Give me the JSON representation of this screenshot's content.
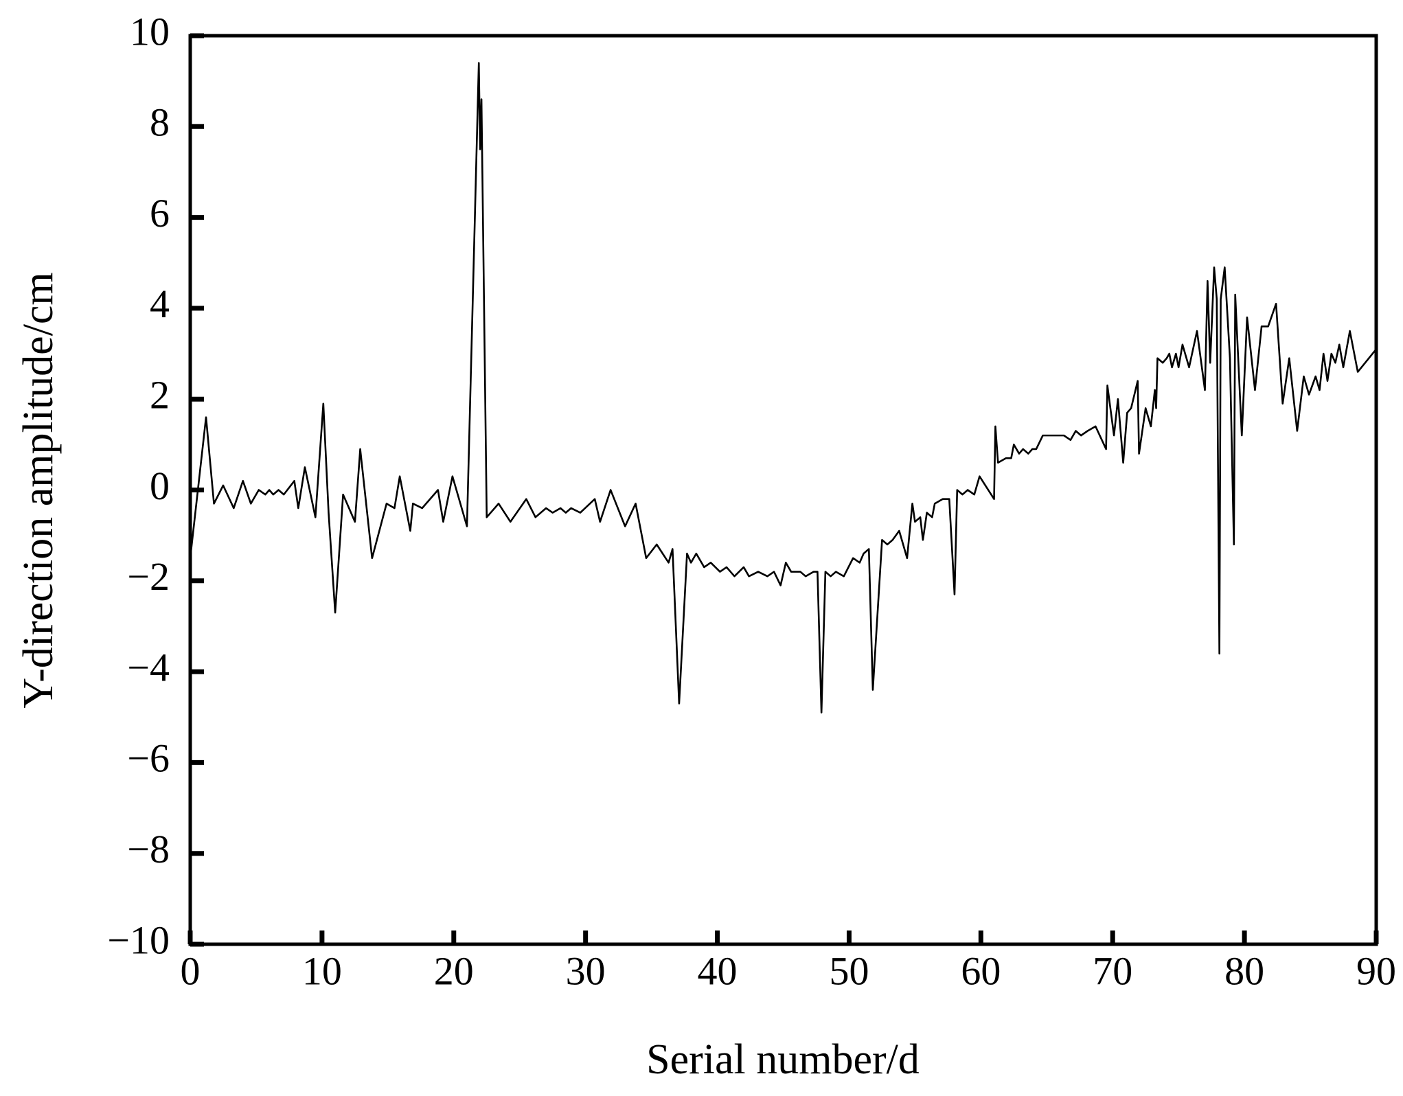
{
  "chart_data": {
    "type": "line",
    "xlabel": "Serial number/d",
    "ylabel": "Y-direction amplitude/cm",
    "color": "#000000",
    "xlim": [
      0,
      90
    ],
    "ylim": [
      -10,
      10
    ],
    "xticks": [
      0,
      10,
      20,
      30,
      40,
      50,
      60,
      70,
      80,
      90
    ],
    "yticks": [
      {
        "value": -10,
        "label": "−10"
      },
      {
        "value": -8,
        "label": "−8"
      },
      {
        "value": -6,
        "label": "−6"
      },
      {
        "value": -4,
        "label": "−4"
      },
      {
        "value": -2,
        "label": "−2"
      },
      0,
      2,
      4,
      6,
      8,
      10
    ],
    "grid": false,
    "x": [
      0,
      1.2,
      1.8,
      2.5,
      3.3,
      4,
      4.6,
      5.2,
      5.7,
      6,
      6.3,
      6.7,
      7.1,
      7.9,
      8.2,
      8.7,
      9.5,
      10.1,
      10.5,
      11,
      11.6,
      12.5,
      12.9,
      13.8,
      14.9,
      15.5,
      15.9,
      16.7,
      16.9,
      17.6,
      18.8,
      19.2,
      19.9,
      21,
      21.9,
      22,
      22.1,
      22.5,
      23.4,
      24.3,
      25.5,
      26.2,
      27,
      27.5,
      28.1,
      28.5,
      28.9,
      29.6,
      30.7,
      31.1,
      31.9,
      33,
      33.8,
      34.6,
      35.4,
      36.3,
      36.6,
      37.1,
      37.7,
      38,
      38.4,
      39,
      39.5,
      40.2,
      40.7,
      41.3,
      42,
      42.4,
      43.1,
      43.8,
      44.3,
      44.8,
      45.2,
      45.6,
      46.3,
      46.7,
      47.3,
      47.6,
      47.9,
      48.2,
      48.6,
      49,
      49.6,
      50.3,
      50.8,
      51.1,
      51.5,
      51.8,
      52.5,
      52.9,
      53.3,
      53.8,
      54.4,
      54.8,
      55,
      55.4,
      55.6,
      55.9,
      56.3,
      56.5,
      57.1,
      57.6,
      58,
      58.2,
      58.6,
      59,
      59.5,
      59.9,
      61,
      61.1,
      61.3,
      61.9,
      62.3,
      62.5,
      62.9,
      63.2,
      63.6,
      63.9,
      64.2,
      64.7,
      65.3,
      65.8,
      66.3,
      66.8,
      67.2,
      67.6,
      68.1,
      68.7,
      69.5,
      69.6,
      70.1,
      70.4,
      70.8,
      71.1,
      71.4,
      71.9,
      72,
      72.5,
      72.9,
      73.2,
      73.3,
      73.4,
      73.8,
      74.1,
      74.3,
      74.5,
      74.8,
      75,
      75.3,
      75.8,
      76.4,
      77,
      77.2,
      77.4,
      77.7,
      77.9,
      78.1,
      78.2,
      78.5,
      78.9,
      79.2,
      79.3,
      79.8,
      80.2,
      80.8,
      81.3,
      81.8,
      82.4,
      82.9,
      83.4,
      84,
      84.5,
      84.9,
      85.4,
      85.7,
      86,
      86.3,
      86.6,
      86.9,
      87.2,
      87.5,
      88,
      88.6,
      90
    ],
    "values": [
      -1.5,
      1.6,
      -0.3,
      0.1,
      -0.4,
      0.2,
      -0.3,
      0,
      -0.1,
      0,
      -0.1,
      0,
      -0.1,
      0.2,
      -0.4,
      0.5,
      -0.6,
      1.9,
      -0.5,
      -2.7,
      -0.1,
      -0.7,
      0.9,
      -1.5,
      -0.3,
      -0.4,
      0.3,
      -0.9,
      -0.3,
      -0.4,
      0,
      -0.7,
      0.3,
      -0.8,
      9.4,
      7.5,
      8.6,
      -0.6,
      -0.3,
      -0.7,
      -0.2,
      -0.6,
      -0.4,
      -0.5,
      -0.4,
      -0.5,
      -0.4,
      -0.5,
      -0.2,
      -0.7,
      0,
      -0.8,
      -0.3,
      -1.5,
      -1.2,
      -1.6,
      -1.3,
      -4.7,
      -1.4,
      -1.6,
      -1.4,
      -1.7,
      -1.6,
      -1.8,
      -1.7,
      -1.9,
      -1.7,
      -1.9,
      -1.8,
      -1.9,
      -1.8,
      -2.1,
      -1.6,
      -1.8,
      -1.8,
      -1.9,
      -1.8,
      -1.8,
      -4.9,
      -1.8,
      -1.9,
      -1.8,
      -1.9,
      -1.5,
      -1.6,
      -1.4,
      -1.3,
      -4.4,
      -1.1,
      -1.2,
      -1.1,
      -0.9,
      -1.5,
      -0.3,
      -0.7,
      -0.6,
      -1.1,
      -0.5,
      -0.6,
      -0.3,
      -0.2,
      -0.2,
      -2.3,
      0,
      -0.1,
      0,
      -0.1,
      0.3,
      -0.2,
      1.4,
      0.6,
      0.7,
      0.7,
      1.0,
      0.8,
      0.9,
      0.8,
      0.9,
      0.9,
      1.2,
      1.2,
      1.2,
      1.2,
      1.1,
      1.3,
      1.2,
      1.3,
      1.4,
      0.9,
      2.3,
      1.2,
      2.0,
      0.6,
      1.7,
      1.8,
      2.4,
      0.8,
      1.8,
      1.4,
      2.2,
      1.8,
      2.9,
      2.8,
      2.9,
      3.0,
      2.7,
      3.0,
      2.7,
      3.2,
      2.7,
      3.5,
      2.2,
      4.6,
      2.8,
      4.9,
      4.2,
      -3.6,
      4.2,
      4.9,
      2.9,
      -1.2,
      4.3,
      1.2,
      3.8,
      2.2,
      3.6,
      3.6,
      4.1,
      1.9,
      2.9,
      1.3,
      2.5,
      2.1,
      2.5,
      2.2,
      3.0,
      2.4,
      3.0,
      2.8,
      3.2,
      2.7,
      3.5,
      2.6,
      3.1
    ]
  }
}
